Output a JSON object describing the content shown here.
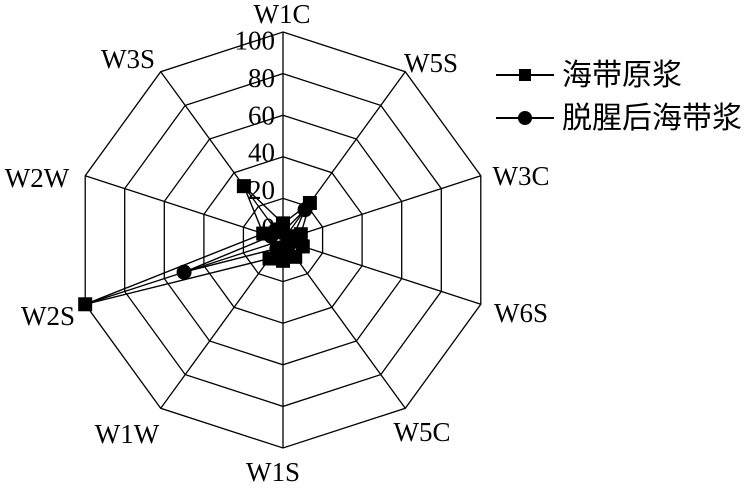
{
  "chart_data": {
    "type": "radar",
    "title": "",
    "grid_shape": "decagon",
    "axes": [
      "W1C",
      "W5S",
      "W3C",
      "W6S",
      "W5C",
      "W1S",
      "W1W",
      "W2S",
      "W2W",
      "W3S"
    ],
    "r_ticks": [
      0,
      20,
      40,
      60,
      80,
      100
    ],
    "r_max": 100,
    "grid_on": true,
    "legend_position": "top-right",
    "colors": {
      "line": "#000000",
      "background": "#ffffff"
    },
    "series": [
      {
        "name": "海带原浆",
        "marker": "square",
        "color": "#000000",
        "values": [
          8,
          22,
          9,
          10,
          10,
          10,
          11,
          100,
          10,
          32
        ]
      },
      {
        "name": "脱腥后海带浆",
        "marker": "circle",
        "color": "#000000",
        "values": [
          4,
          18,
          5,
          4,
          4,
          4,
          5,
          50,
          6,
          6
        ]
      }
    ]
  }
}
